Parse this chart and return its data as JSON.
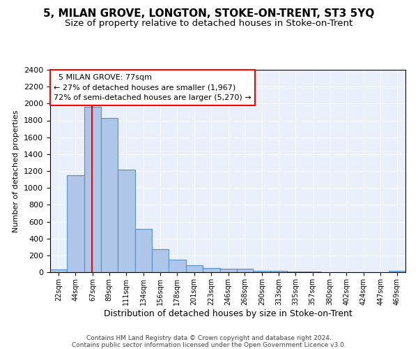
{
  "title": "5, MILAN GROVE, LONGTON, STOKE-ON-TRENT, ST3 5YQ",
  "subtitle": "Size of property relative to detached houses in Stoke-on-Trent",
  "xlabel": "Distribution of detached houses by size in Stoke-on-Trent",
  "ylabel": "Number of detached properties",
  "footer_line1": "Contains HM Land Registry data © Crown copyright and database right 2024.",
  "footer_line2": "Contains public sector information licensed under the Open Government Licence v3.0.",
  "annotation_line1": "  5 MILAN GROVE: 77sqm",
  "annotation_line2": "← 27% of detached houses are smaller (1,967)",
  "annotation_line3": "72% of semi-detached houses are larger (5,270) →",
  "bar_edges": [
    22,
    44,
    67,
    89,
    111,
    134,
    156,
    178,
    201,
    223,
    246,
    268,
    290,
    313,
    335,
    357,
    380,
    402,
    424,
    447,
    469
  ],
  "bar_heights": [
    30,
    1150,
    1960,
    1830,
    1220,
    515,
    270,
    150,
    80,
    50,
    45,
    40,
    20,
    15,
    5,
    5,
    3,
    2,
    2,
    2,
    20
  ],
  "bar_color": "#aec6e8",
  "bar_edge_color": "#5a8fc2",
  "red_line_x": 77,
  "ylim": [
    0,
    2400
  ],
  "yticks": [
    0,
    200,
    400,
    600,
    800,
    1000,
    1200,
    1400,
    1600,
    1800,
    2000,
    2200,
    2400
  ],
  "plot_bg_color": "#eaf0fb",
  "title_fontsize": 11,
  "subtitle_fontsize": 9.5
}
